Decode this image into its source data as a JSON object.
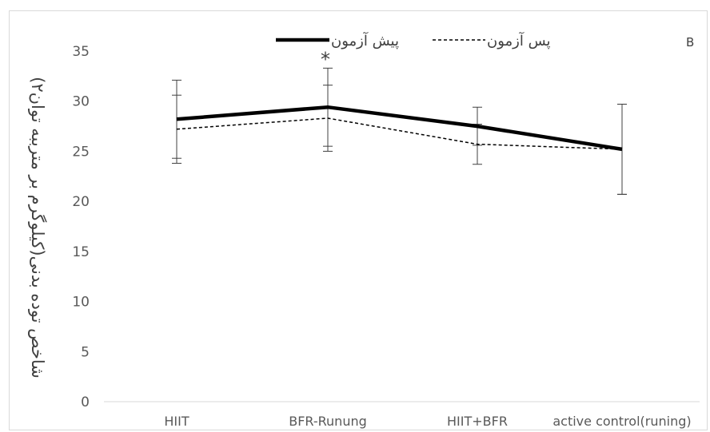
{
  "chart_data": {
    "type": "line",
    "panel_label": "B",
    "ylabel": "شاخص توده بدنی(کیلوگرم بر مترببه توان۲)",
    "ylim": [
      0,
      35
    ],
    "yticks": [
      0,
      5,
      10,
      15,
      20,
      25,
      30,
      35
    ],
    "grid": false,
    "legend_position": "top",
    "categories": [
      "HIIT",
      "BFR-Runung",
      "HIIT+BFR",
      "active control(runing)"
    ],
    "series": [
      {
        "name": "پیش آزمون",
        "values": [
          28.2,
          29.4,
          27.5,
          25.2
        ],
        "errors": [
          3.9,
          3.9,
          1.9,
          4.5
        ],
        "color": "#000000",
        "style": "solid"
      },
      {
        "name": "پس آزمون",
        "values": [
          27.2,
          28.3,
          25.7,
          25.2
        ],
        "errors": [
          3.4,
          3.3,
          2.0,
          4.5
        ],
        "color": "#000000",
        "style": "dashed"
      }
    ],
    "annotations": [
      {
        "text": "*",
        "category": "BFR-Runung"
      }
    ]
  }
}
